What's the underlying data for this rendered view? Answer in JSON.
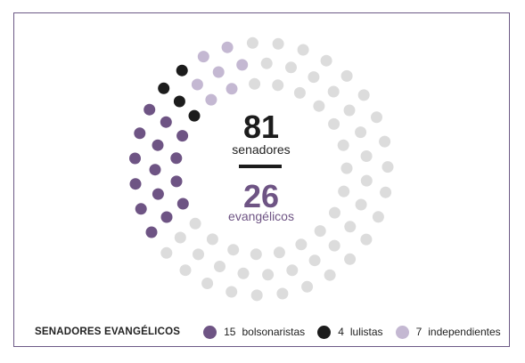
{
  "chart_data": {
    "type": "dot-donut",
    "total_value": "81",
    "total_label": "senadores",
    "highlight_value": "26",
    "highlight_label": "evangélicos",
    "legend_title": "SENADORES EVANGÉLICOS",
    "series": [
      {
        "name": "bolsonaristas",
        "count": 15,
        "color": "#6e5484"
      },
      {
        "name": "lulistas",
        "count": 4,
        "color": "#1c1c1c"
      },
      {
        "name": "independientes",
        "count": 7,
        "color": "#c4b8d2"
      }
    ],
    "others": {
      "count": 55,
      "color": "#dcdcdc"
    }
  },
  "colors": {
    "border": "#6d5a86",
    "accent": "#6e5484",
    "text": "#222222"
  }
}
